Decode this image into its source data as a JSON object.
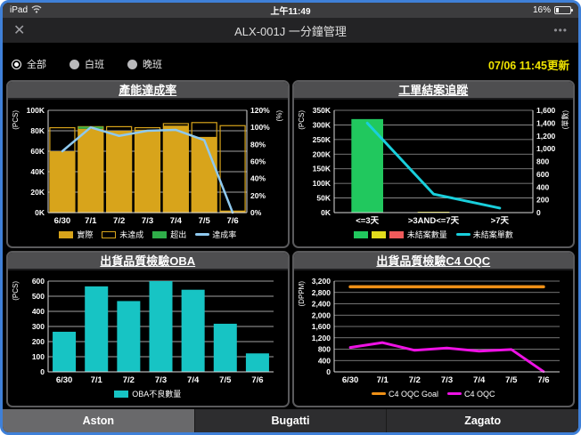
{
  "status_bar": {
    "device": "iPad",
    "time": "上午11:49",
    "battery": "16%"
  },
  "nav_bar": {
    "title": "ALX-001J 一分鐘管理",
    "close_icon": "✕",
    "more_icon": "•••"
  },
  "filters": {
    "options": [
      {
        "label": "全部",
        "selected": true
      },
      {
        "label": "白班",
        "selected": false
      },
      {
        "label": "晚班",
        "selected": false
      }
    ],
    "updated_text": "07/06 11:45更新",
    "updated_color": "#f0e400"
  },
  "colors": {
    "frame_blue": "#3f80d8",
    "bar_yellow": "#d8a41b",
    "exceed_green": "#2fae49",
    "rate_blue": "#8fc9ef",
    "order_green": "#21c85e",
    "order_yellow": "#e3dc1c",
    "order_red": "#f05a5a",
    "count_cyan": "#19cfdc",
    "oba_teal": "#17c4c4",
    "goal_orange": "#ef9017",
    "oqc_magenta": "#ee12e4"
  },
  "chart_data": [
    {
      "type": "bar",
      "title": "產能達成率",
      "categories": [
        "6/30",
        "7/1",
        "7/2",
        "7/3",
        "7/4",
        "7/5",
        "7/6"
      ],
      "left_axis": {
        "label": "(PCS)",
        "min": 0,
        "max": 100000,
        "step": 20000,
        "format": "k"
      },
      "right_axis": {
        "label": "(%)",
        "min": 0,
        "max": 120,
        "step": 20,
        "format": "pct"
      },
      "grid_color": "#d8d8d8",
      "bar_ratio": 0.88,
      "series": [
        {
          "name": "實際",
          "type": "bar",
          "axis": "left",
          "color": "#d8a41b",
          "values": [
            60000,
            82000,
            80000,
            81000,
            85000,
            74000,
            2000
          ]
        },
        {
          "name": "未達成",
          "type": "frame",
          "axis": "left",
          "color": "#d8a41b",
          "values": [
            83000,
            84000,
            84000,
            83000,
            87000,
            88000,
            85000
          ]
        },
        {
          "name": "超出",
          "type": "barseg",
          "axis": "left",
          "color": "#2fae49",
          "base_series": 0,
          "values": [
            0,
            2000,
            0,
            0,
            0,
            0,
            0
          ]
        },
        {
          "name": "達成率",
          "type": "line",
          "axis": "right",
          "color": "#8fc9ef",
          "width": 2.5,
          "values": [
            72,
            100,
            90,
            96,
            97,
            85,
            0
          ]
        }
      ],
      "legend": [
        {
          "kind": "swatch",
          "colors": [
            "#d8a41b"
          ],
          "label": "實際"
        },
        {
          "kind": "swatch",
          "colors": [
            "#000000"
          ],
          "stroke": "#d8a41b",
          "label": "未達成"
        },
        {
          "kind": "swatch",
          "colors": [
            "#2fae49"
          ],
          "label": "超出"
        },
        {
          "kind": "line",
          "colors": [
            "#8fc9ef"
          ],
          "label": "達成率"
        }
      ]
    },
    {
      "type": "bar",
      "title": "工單結案追蹤",
      "categories": [
        "<=3天",
        ">3AND<=7天",
        ">7天"
      ],
      "left_axis": {
        "label": "(PCS)",
        "min": 0,
        "max": 350000,
        "step": 50000,
        "format": "k"
      },
      "right_axis": {
        "label": "(單數)",
        "min": 0,
        "max": 1600,
        "step": 200,
        "format": "comma"
      },
      "grid_color": "#9a9a9a",
      "bar_ratio": 0.48,
      "series": [
        {
          "name": "未結案數量",
          "type": "bar",
          "axis": "left",
          "colors": [
            "#21c85e",
            "#e3dc1c",
            "#f05a5a"
          ],
          "values": [
            320000,
            3000,
            0
          ]
        },
        {
          "name": "未結案單數",
          "type": "line",
          "axis": "right",
          "color": "#19cfdc",
          "width": 3,
          "values": [
            1400,
            290,
            70
          ]
        }
      ],
      "legend": [
        {
          "kind": "swatch",
          "colors": [
            "#21c85e",
            "#e3dc1c",
            "#f05a5a"
          ],
          "label": "未結案數量"
        },
        {
          "kind": "line",
          "colors": [
            "#19cfdc"
          ],
          "label": "未結案單數"
        }
      ]
    },
    {
      "type": "bar",
      "title": "出貨品質檢驗OBA",
      "categories": [
        "6/30",
        "7/1",
        "7/2",
        "7/3",
        "7/4",
        "7/5",
        "7/6"
      ],
      "left_axis": {
        "label": "(PCS)",
        "min": 0,
        "max": 600,
        "step": 100,
        "format": "plain"
      },
      "grid_color": "#d8d8d8",
      "bar_ratio": 0.72,
      "series": [
        {
          "name": "OBA不良數量",
          "type": "bar",
          "axis": "left",
          "color": "#17c4c4",
          "values": [
            265,
            565,
            468,
            600,
            543,
            318,
            122
          ]
        }
      ],
      "legend": [
        {
          "kind": "swatch",
          "colors": [
            "#17c4c4"
          ],
          "label": "OBA不良數量"
        }
      ]
    },
    {
      "type": "line",
      "title": "出貨品質檢驗C4 OQC",
      "categories": [
        "6/30",
        "7/1",
        "7/2",
        "7/3",
        "7/4",
        "7/5",
        "7/6"
      ],
      "left_axis": {
        "label": "(DPPM)",
        "min": 0,
        "max": 3200,
        "step": 400,
        "format": "comma"
      },
      "grid_color": "#9a9a9a",
      "bar_ratio": 0.7,
      "series": [
        {
          "name": "C4 OQC Goal",
          "type": "line",
          "axis": "left",
          "color": "#ef9017",
          "width": 3.5,
          "values": [
            3000,
            3000,
            3000,
            3000,
            3000,
            3000,
            3000
          ]
        },
        {
          "name": "C4 OQC",
          "type": "line",
          "axis": "left",
          "color": "#ee12e4",
          "width": 3,
          "values": [
            860,
            1030,
            760,
            840,
            730,
            790,
            10
          ]
        }
      ],
      "legend": [
        {
          "kind": "line",
          "colors": [
            "#ef9017"
          ],
          "label": "C4 OQC Goal"
        },
        {
          "kind": "line",
          "colors": [
            "#ee12e4"
          ],
          "label": "C4 OQC"
        }
      ]
    }
  ],
  "tabs": [
    {
      "label": "Aston",
      "selected": true
    },
    {
      "label": "Bugatti",
      "selected": false
    },
    {
      "label": "Zagato",
      "selected": false
    }
  ]
}
